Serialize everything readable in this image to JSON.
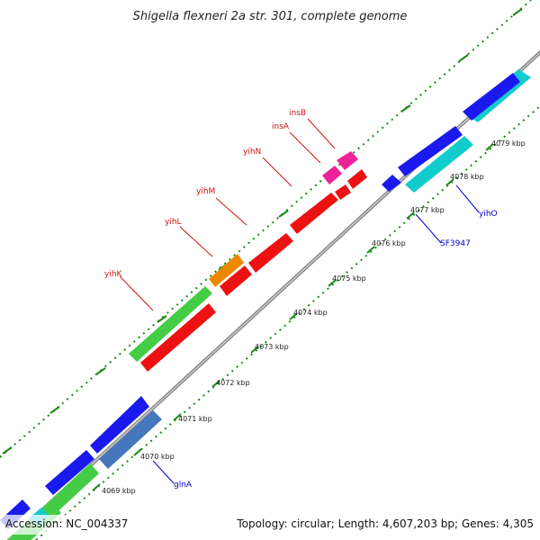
{
  "title": "Shigella flexneri 2a str. 301, complete genome",
  "footer": {
    "accession": "Accession: NC_004337",
    "summary": "Topology: circular; Length: 4,607,203 bp; Genes: 4,305"
  },
  "colors": {
    "backbone": "#8a8a8a",
    "dots": "#1a8a1a",
    "label_red": "#cc1111",
    "label_blue": "#0000cc"
  },
  "ticks": [
    "4069 kbp",
    "4070 kbp",
    "4071 kbp",
    "4072 kbp",
    "4073 kbp",
    "4074 kbp",
    "4075 kbp",
    "4076 kbp",
    "4077 kbp",
    "4078 kbp",
    "4079 kbp"
  ],
  "gene_labels": [
    "yihK",
    "yihL",
    "yihM",
    "yihN",
    "insA",
    "insB",
    "SF3947",
    "yihO",
    "glnA"
  ]
}
